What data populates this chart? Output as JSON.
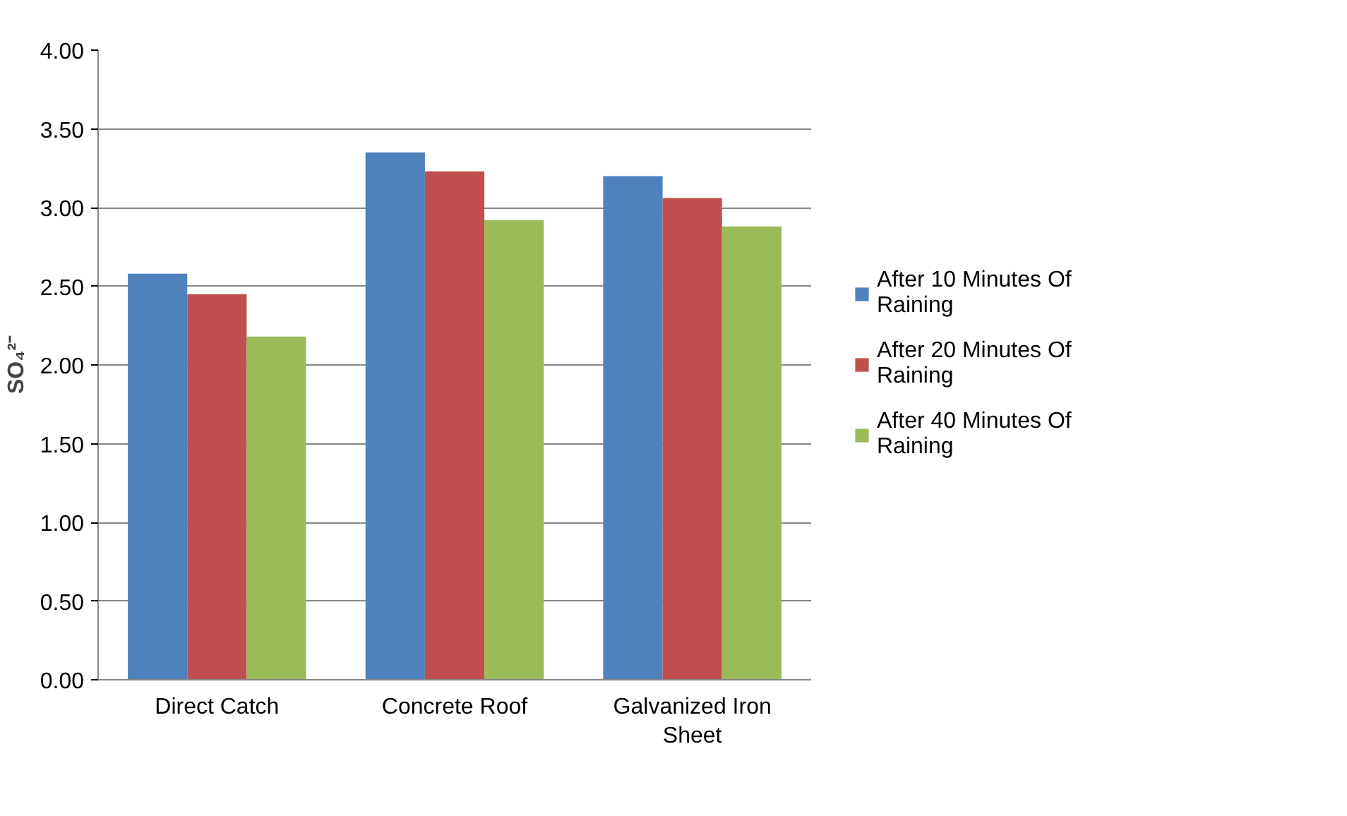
{
  "chart_data": {
    "type": "bar",
    "ylabel": "SO₄²⁻",
    "categories": [
      "Direct Catch",
      "Concrete Roof",
      "Galvanized Iron Sheet"
    ],
    "series": [
      {
        "name": "After 10 Minutes Of Raining",
        "color": "#4f81bd",
        "values": [
          2.58,
          3.35,
          3.2
        ]
      },
      {
        "name": "After 20 Minutes Of Raining",
        "color": "#c0504d",
        "values": [
          2.45,
          3.23,
          3.06
        ]
      },
      {
        "name": "After 40 Minutes Of Raining",
        "color": "#9bbb59",
        "values": [
          2.18,
          2.92,
          2.88
        ]
      }
    ],
    "ylim": [
      0,
      4
    ],
    "yticks": [
      {
        "value": 0,
        "label": "0.00"
      },
      {
        "value": 0.5,
        "label": "0.50"
      },
      {
        "value": 1,
        "label": "1.00"
      },
      {
        "value": 1.5,
        "label": "1.50"
      },
      {
        "value": 2,
        "label": "2.00"
      },
      {
        "value": 2.5,
        "label": "2.50"
      },
      {
        "value": 3,
        "label": "3.00"
      },
      {
        "value": 3.5,
        "label": "3.50"
      },
      {
        "value": 4,
        "label": "4.00"
      }
    ],
    "grid": "y",
    "legend": "right"
  }
}
